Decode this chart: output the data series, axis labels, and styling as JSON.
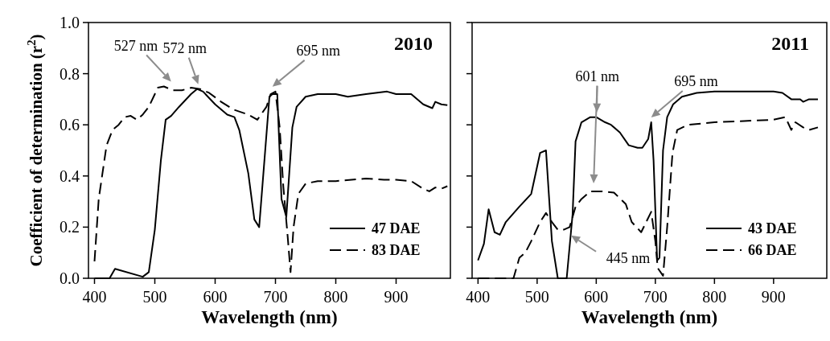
{
  "chart_data": [
    {
      "type": "line",
      "title": "2010",
      "xlabel": "Wavelength (nm)",
      "ylabel": "Coefficient of determination ($^{}$r$^{2}$)",
      "xlim": [
        390,
        990
      ],
      "xticks": [
        400,
        500,
        600,
        700,
        800,
        900
      ],
      "ylim": [
        0,
        1
      ],
      "yticks": [
        {
          "value": 0,
          "label": "0.0"
        },
        {
          "value": 0.2,
          "label": "0.2"
        },
        {
          "value": 0.4,
          "label": "0.4"
        },
        {
          "value": 0.6,
          "label": "0.6"
        },
        {
          "value": 0.8,
          "label": "0.8"
        },
        {
          "value": 1,
          "label": "1.0"
        }
      ],
      "grid": false,
      "legend": "bottom right",
      "marker": "none",
      "annotations": [
        {
          "text": "527 nm",
          "x": 527,
          "y": 0.75
        },
        {
          "text": "572 nm",
          "x": 572,
          "y": 0.74
        },
        {
          "text": "695 nm",
          "x": 695,
          "y": 0.73
        }
      ],
      "series": [
        {
          "name": "47 DAE",
          "color": "#000000",
          "line_style": "solid",
          "x": [
            400,
            425,
            434,
            480,
            490,
            500,
            510,
            518,
            527,
            540,
            560,
            570,
            580,
            600,
            620,
            632,
            640,
            655,
            665,
            673,
            690,
            695,
            703,
            710,
            718,
            728,
            735,
            750,
            770,
            800,
            820,
            850,
            885,
            900,
            925,
            945,
            960,
            965,
            975,
            985
          ],
          "values": [
            0,
            0,
            0.037,
            0.006,
            0.024,
            0.19,
            0.46,
            0.62,
            0.635,
            0.67,
            0.72,
            0.74,
            0.73,
            0.68,
            0.64,
            0.63,
            0.58,
            0.41,
            0.23,
            0.2,
            0.71,
            0.72,
            0.72,
            0.31,
            0.24,
            0.59,
            0.67,
            0.71,
            0.72,
            0.72,
            0.71,
            0.72,
            0.73,
            0.72,
            0.72,
            0.68,
            0.665,
            0.69,
            0.68,
            0.677
          ]
        },
        {
          "name": "83 DAE",
          "color": "#000000",
          "line_style": "dashed",
          "x": [
            400,
            407,
            420,
            430,
            440,
            450,
            460,
            470,
            480,
            490,
            505,
            515,
            530,
            545,
            560,
            575,
            590,
            610,
            630,
            655,
            670,
            685,
            692,
            700,
            707,
            713,
            720,
            725,
            730,
            738,
            750,
            770,
            800,
            850,
            880,
            900,
            925,
            945,
            955,
            965,
            975,
            985
          ],
          "values": [
            0.066,
            0.31,
            0.52,
            0.58,
            0.6,
            0.63,
            0.635,
            0.62,
            0.64,
            0.67,
            0.745,
            0.75,
            0.735,
            0.735,
            0.745,
            0.74,
            0.725,
            0.69,
            0.66,
            0.64,
            0.62,
            0.67,
            0.72,
            0.73,
            0.59,
            0.36,
            0.17,
            0.024,
            0.2,
            0.33,
            0.37,
            0.38,
            0.38,
            0.39,
            0.385,
            0.385,
            0.38,
            0.35,
            0.34,
            0.355,
            0.35,
            0.36
          ]
        }
      ]
    },
    {
      "type": "line",
      "title": "2011",
      "xlabel": "Wavelength (nm)",
      "xlim": [
        390,
        990
      ],
      "xticks": [
        400,
        500,
        600,
        700,
        800,
        900
      ],
      "ylim": [
        0,
        1
      ],
      "yticks": [
        0,
        0.2,
        0.4,
        0.6,
        0.8,
        1
      ],
      "tick_labels": "x",
      "grid": false,
      "legend": "bottom right",
      "marker": "none",
      "annotations": [
        {
          "text": "601 nm",
          "x": 601,
          "y": 0.63
        },
        {
          "text": "445 nm",
          "x": 552,
          "y": 0.18
        },
        {
          "text": "695 nm",
          "x": 693,
          "y": 0.61
        }
      ],
      "series": [
        {
          "name": "43 DAE",
          "color": "#000000",
          "line_style": "solid",
          "x": [
            400,
            410,
            418,
            428,
            437,
            447,
            470,
            490,
            505,
            515,
            525,
            535,
            550,
            560,
            565,
            575,
            590,
            600,
            615,
            625,
            640,
            655,
            670,
            678,
            688,
            693,
            697,
            703,
            707,
            713,
            720,
            730,
            745,
            770,
            800,
            850,
            900,
            915,
            930,
            945,
            950,
            960,
            975
          ],
          "values": [
            0.07,
            0.135,
            0.27,
            0.18,
            0.17,
            0.22,
            0.28,
            0.33,
            0.49,
            0.5,
            0.145,
            0,
            0,
            0.25,
            0.535,
            0.61,
            0.63,
            0.63,
            0.61,
            0.6,
            0.57,
            0.52,
            0.51,
            0.51,
            0.545,
            0.61,
            0.46,
            0.07,
            0.08,
            0.5,
            0.63,
            0.68,
            0.71,
            0.725,
            0.73,
            0.73,
            0.73,
            0.725,
            0.7,
            0.7,
            0.69,
            0.7,
            0.7
          ]
        },
        {
          "name": "66 DAE",
          "color": "#000000",
          "line_style": "dashed",
          "x": [
            400,
            460,
            470,
            480,
            490,
            505,
            515,
            525,
            535,
            545,
            555,
            565,
            575,
            590,
            610,
            630,
            650,
            660,
            676,
            693,
            700,
            704,
            713,
            720,
            729,
            737,
            755,
            800,
            850,
            900,
            920,
            930,
            937,
            950,
            960,
            975
          ],
          "values": [
            0,
            0,
            0.08,
            0.1,
            0.145,
            0.22,
            0.255,
            0.22,
            0.19,
            0.19,
            0.2,
            0.28,
            0.31,
            0.34,
            0.34,
            0.335,
            0.29,
            0.22,
            0.18,
            0.26,
            0.145,
            0.04,
            0.01,
            0.2,
            0.49,
            0.58,
            0.6,
            0.61,
            0.615,
            0.62,
            0.63,
            0.58,
            0.61,
            0.59,
            0.58,
            0.59
          ]
        }
      ]
    }
  ]
}
